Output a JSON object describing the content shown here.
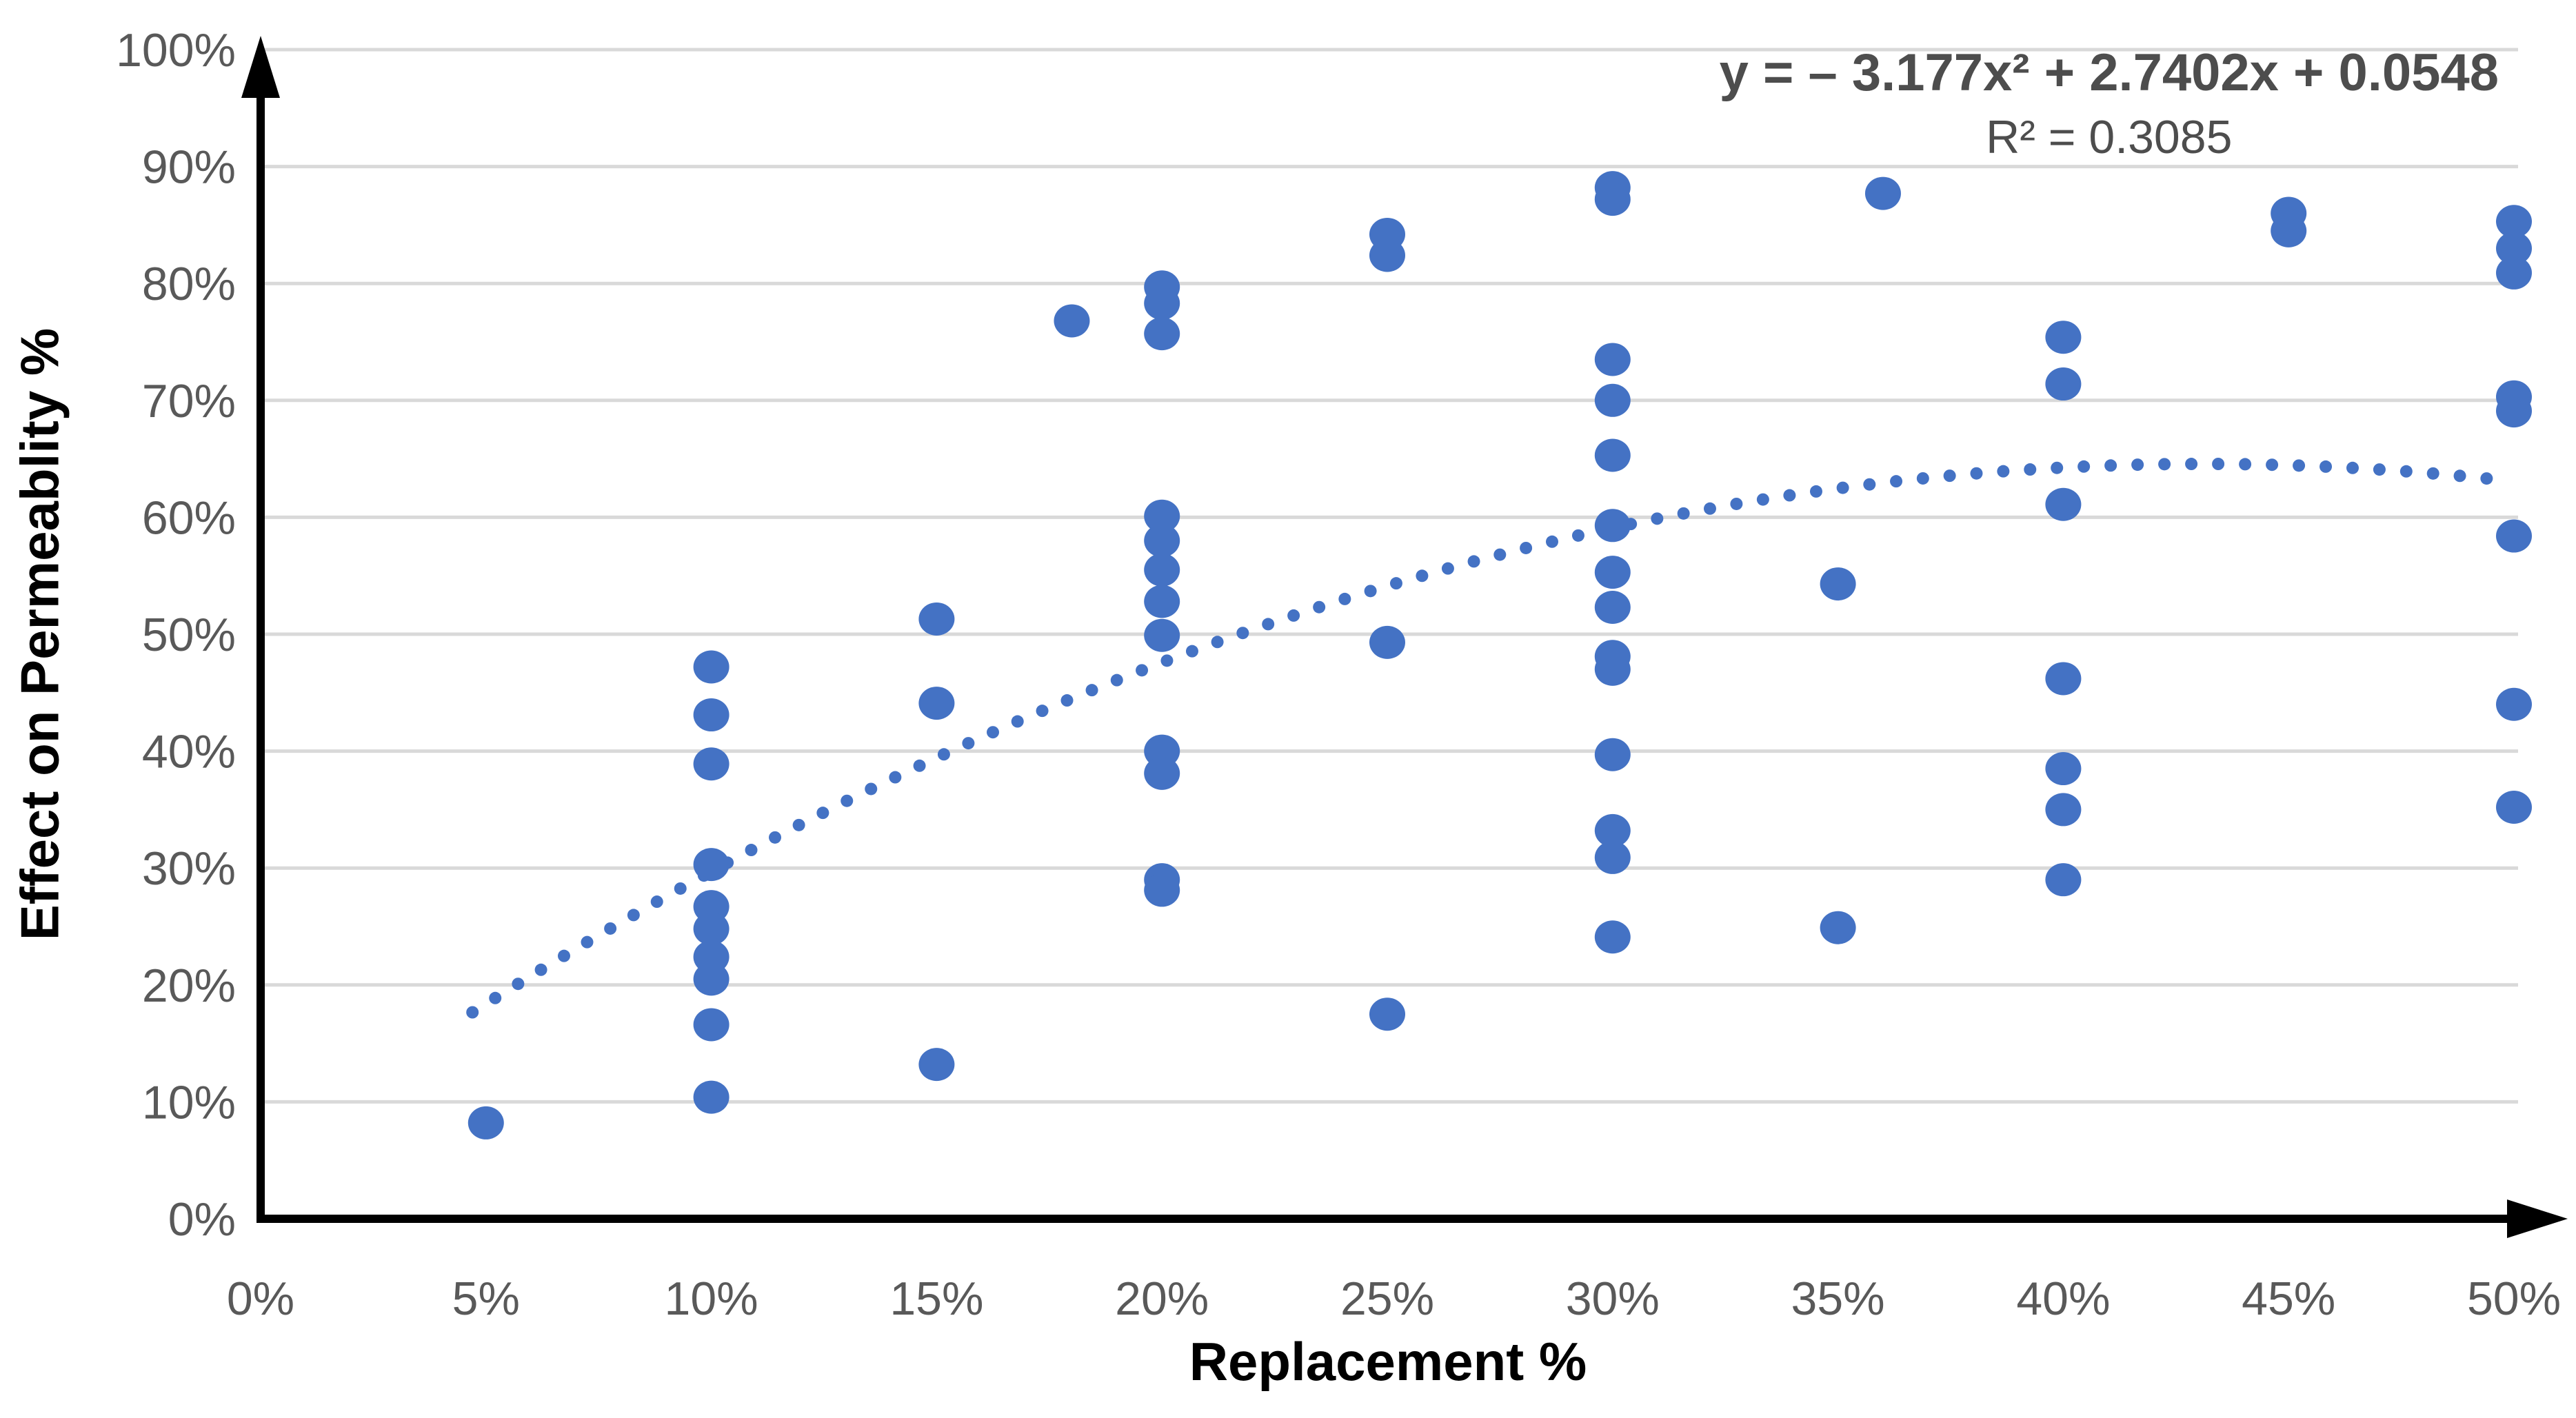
{
  "annotation": {
    "equation": "y = – 3.177x² + 2.7402x + 0.0548",
    "r_squared": "R² = 0.3085"
  },
  "axes": {
    "x_label": "Replacement %",
    "y_label": "Effect on Permeablity %",
    "x_ticks": [
      "0%",
      "5%",
      "10%",
      "15%",
      "20%",
      "25%",
      "30%",
      "35%",
      "40%",
      "45%",
      "50%"
    ],
    "y_ticks": [
      "0%",
      "10%",
      "20%",
      "30%",
      "40%",
      "50%",
      "60%",
      "70%",
      "80%",
      "90%",
      "100%"
    ]
  },
  "colors": {
    "marker": "#4472C4",
    "trendline": "#4472C4",
    "gridline": "#D9D9D9",
    "axis": "#000000",
    "tick_label": "#595959",
    "annotation_text": "#4d4d4d"
  },
  "chart_data": {
    "type": "scatter",
    "title": "",
    "xlabel": "Replacement %",
    "ylabel": "Effect on Permeablity %",
    "x_unit": "percent",
    "y_unit": "percent",
    "xlim": [
      0,
      50
    ],
    "ylim": [
      0,
      100
    ],
    "x_tick_interval": 5,
    "y_tick_interval": 10,
    "grid": "horizontal",
    "legend": "none",
    "points": [
      {
        "x": 5,
        "y": 8.2
      },
      {
        "x": 10,
        "y": 47.2
      },
      {
        "x": 10,
        "y": 43.1
      },
      {
        "x": 10,
        "y": 38.9
      },
      {
        "x": 10,
        "y": 30.3
      },
      {
        "x": 10,
        "y": 26.7
      },
      {
        "x": 10,
        "y": 24.8
      },
      {
        "x": 10,
        "y": 22.4
      },
      {
        "x": 10,
        "y": 20.5
      },
      {
        "x": 10,
        "y": 16.6
      },
      {
        "x": 10,
        "y": 10.4
      },
      {
        "x": 15,
        "y": 51.3
      },
      {
        "x": 15,
        "y": 44.1
      },
      {
        "x": 15,
        "y": 13.2
      },
      {
        "x": 18,
        "y": 76.8
      },
      {
        "x": 20,
        "y": 79.7
      },
      {
        "x": 20,
        "y": 78.3
      },
      {
        "x": 20,
        "y": 75.7
      },
      {
        "x": 20,
        "y": 60.1
      },
      {
        "x": 20,
        "y": 58.0
      },
      {
        "x": 20,
        "y": 55.5
      },
      {
        "x": 20,
        "y": 52.8
      },
      {
        "x": 20,
        "y": 49.9
      },
      {
        "x": 20,
        "y": 40.0
      },
      {
        "x": 20,
        "y": 38.1
      },
      {
        "x": 20,
        "y": 29.0
      },
      {
        "x": 20,
        "y": 28.1
      },
      {
        "x": 25,
        "y": 84.2
      },
      {
        "x": 25,
        "y": 82.4
      },
      {
        "x": 25,
        "y": 49.3
      },
      {
        "x": 25,
        "y": 17.5
      },
      {
        "x": 30,
        "y": 88.2
      },
      {
        "x": 30,
        "y": 87.2
      },
      {
        "x": 30,
        "y": 73.5
      },
      {
        "x": 30,
        "y": 70.0
      },
      {
        "x": 30,
        "y": 65.3
      },
      {
        "x": 30,
        "y": 59.3
      },
      {
        "x": 30,
        "y": 55.3
      },
      {
        "x": 30,
        "y": 52.3
      },
      {
        "x": 30,
        "y": 48.1
      },
      {
        "x": 30,
        "y": 47.0
      },
      {
        "x": 30,
        "y": 39.7
      },
      {
        "x": 30,
        "y": 33.2
      },
      {
        "x": 30,
        "y": 30.9
      },
      {
        "x": 30,
        "y": 24.1
      },
      {
        "x": 35,
        "y": 54.3
      },
      {
        "x": 35,
        "y": 24.9
      },
      {
        "x": 36,
        "y": 87.7
      },
      {
        "x": 40,
        "y": 75.4
      },
      {
        "x": 40,
        "y": 71.4
      },
      {
        "x": 40,
        "y": 61.1
      },
      {
        "x": 40,
        "y": 46.2
      },
      {
        "x": 40,
        "y": 38.5
      },
      {
        "x": 40,
        "y": 35.0
      },
      {
        "x": 40,
        "y": 29.0
      },
      {
        "x": 45,
        "y": 86.0
      },
      {
        "x": 45,
        "y": 84.5
      },
      {
        "x": 50,
        "y": 85.3
      },
      {
        "x": 50,
        "y": 83.0
      },
      {
        "x": 50,
        "y": 80.9
      },
      {
        "x": 50,
        "y": 70.3
      },
      {
        "x": 50,
        "y": 69.1
      },
      {
        "x": 50,
        "y": 58.4
      },
      {
        "x": 50,
        "y": 44.0
      },
      {
        "x": 50,
        "y": 35.2
      }
    ],
    "trendline": {
      "type": "polynomial",
      "degree": 2,
      "coefficients": {
        "a": -3.177,
        "b": 2.7402,
        "c": 0.0548
      },
      "equation": "y = – 3.177x² + 2.7402x + 0.0548",
      "r2": 0.3085,
      "style": "dotted",
      "x_range_percent": [
        4.7,
        50
      ]
    }
  }
}
